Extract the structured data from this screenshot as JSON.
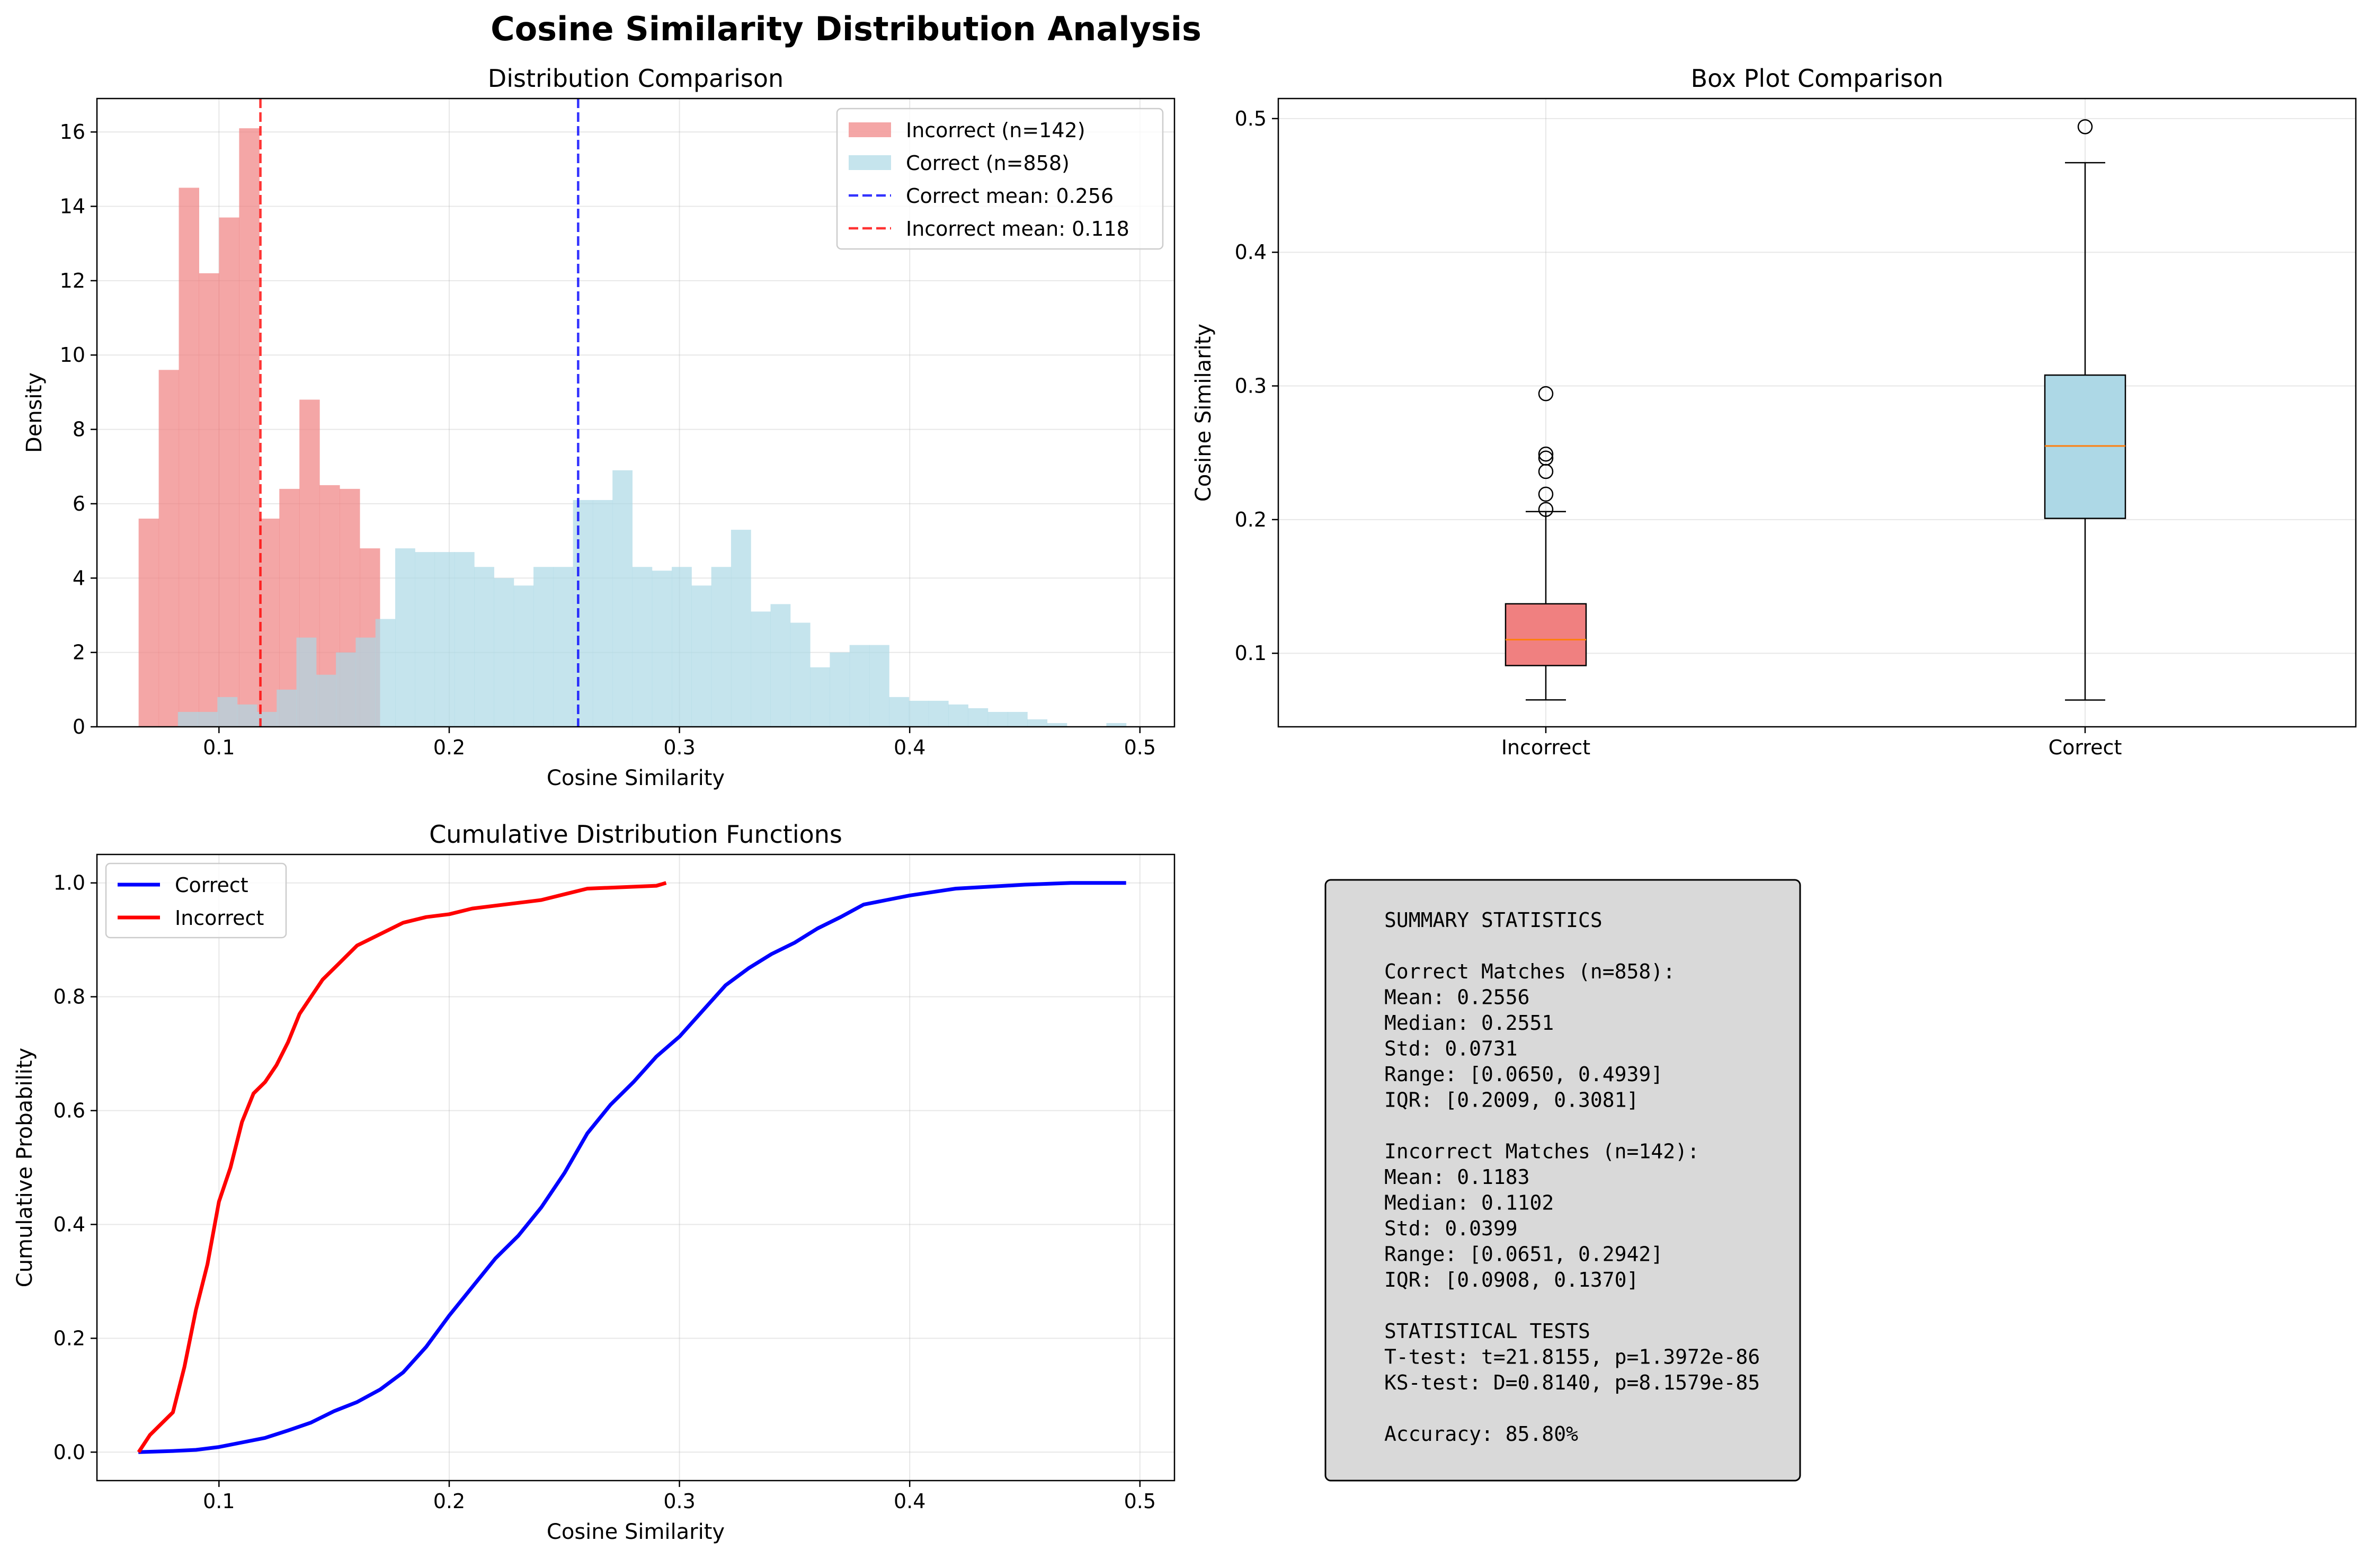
{
  "suptitle": "Cosine Similarity Distribution Analysis",
  "colors": {
    "incorrect_fill": "#f08080",
    "correct_fill": "#add8e6",
    "correct_line": "#0000ff",
    "incorrect_line": "#ff0000",
    "median": "#ff7f0e",
    "grid": "#b0b0b0",
    "stats_bg": "#d9d9d9"
  },
  "chart_data": [
    {
      "type": "bar",
      "title": "Distribution Comparison",
      "xlabel": "Cosine Similarity",
      "ylabel": "Density",
      "xlim": [
        0.047,
        0.515
      ],
      "ylim": [
        0,
        16.9
      ],
      "xticks": [
        0.1,
        0.2,
        0.3,
        0.4,
        0.5
      ],
      "xtick_labels": [
        "0.1",
        "0.2",
        "0.3",
        "0.4",
        "0.5"
      ],
      "yticks": [
        0,
        2,
        4,
        6,
        8,
        10,
        12,
        14,
        16
      ],
      "ytick_labels": [
        "0",
        "2",
        "4",
        "6",
        "8",
        "10",
        "12",
        "14",
        "16"
      ],
      "grid": true,
      "legend_position": "upper right",
      "series": [
        {
          "name": "Incorrect (n=142)",
          "color": "#f08080",
          "bin_start": 0.0651,
          "bin_width": 0.00873,
          "densities": [
            5.6,
            9.6,
            14.5,
            12.2,
            13.7,
            16.1,
            5.6,
            6.4,
            8.8,
            6.5,
            6.4,
            4.8
          ]
        },
        {
          "name": "Correct (n=858)",
          "color": "#add8e6",
          "bin_start": 0.065,
          "bin_width": 0.00858,
          "densities": [
            0,
            0,
            0.4,
            0.4,
            0.8,
            0.6,
            0.4,
            1.0,
            2.4,
            1.4,
            2.0,
            2.4,
            2.9,
            4.8,
            4.7,
            4.7,
            4.7,
            4.3,
            4.0,
            3.8,
            4.3,
            4.3,
            6.1,
            6.1,
            6.9,
            4.3,
            4.2,
            4.3,
            3.8,
            4.3,
            5.3,
            3.1,
            3.3,
            2.8,
            1.6,
            2.0,
            2.2,
            2.2,
            0.8,
            0.7,
            0.7,
            0.6,
            0.5,
            0.4,
            0.4,
            0.2,
            0.1,
            0,
            0,
            0.1
          ]
        }
      ],
      "mean_lines": [
        {
          "name": "Correct mean: 0.256",
          "x": 0.256,
          "color": "#0000ff"
        },
        {
          "name": "Incorrect mean: 0.118",
          "x": 0.118,
          "color": "#ff0000"
        }
      ]
    },
    {
      "type": "box",
      "title": "Box Plot Comparison",
      "xlabel": "",
      "ylabel": "Cosine Similarity",
      "ylim": [
        0.045,
        0.515
      ],
      "yticks": [
        0.1,
        0.2,
        0.3,
        0.4,
        0.5
      ],
      "ytick_labels": [
        "0.1",
        "0.2",
        "0.3",
        "0.4",
        "0.5"
      ],
      "grid": true,
      "categories": [
        "Incorrect",
        "Correct"
      ],
      "boxes": [
        {
          "name": "Incorrect",
          "color": "#f08080",
          "whisker_low": 0.0651,
          "q1": 0.0908,
          "median": 0.1102,
          "q3": 0.137,
          "whisker_high": 0.206,
          "outliers": [
            0.2076,
            0.219,
            0.236,
            0.246,
            0.249,
            0.2942
          ]
        },
        {
          "name": "Correct",
          "color": "#add8e6",
          "whisker_low": 0.065,
          "q1": 0.2009,
          "median": 0.2551,
          "q3": 0.3081,
          "whisker_high": 0.467,
          "outliers": [
            0.4939
          ]
        }
      ]
    },
    {
      "type": "line",
      "title": "Cumulative Distribution Functions",
      "xlabel": "Cosine Similarity",
      "ylabel": "Cumulative Probability",
      "xlim": [
        0.047,
        0.515
      ],
      "ylim": [
        -0.05,
        1.05
      ],
      "xticks": [
        0.1,
        0.2,
        0.3,
        0.4,
        0.5
      ],
      "xtick_labels": [
        "0.1",
        "0.2",
        "0.3",
        "0.4",
        "0.5"
      ],
      "yticks": [
        0.0,
        0.2,
        0.4,
        0.6,
        0.8,
        1.0
      ],
      "ytick_labels": [
        "0.0",
        "0.2",
        "0.4",
        "0.6",
        "0.8",
        "1.0"
      ],
      "grid": true,
      "legend_position": "upper left",
      "series": [
        {
          "name": "Correct",
          "color": "#0000ff",
          "x": [
            0.065,
            0.08,
            0.09,
            0.1,
            0.11,
            0.12,
            0.13,
            0.14,
            0.15,
            0.16,
            0.17,
            0.18,
            0.19,
            0.2,
            0.21,
            0.22,
            0.23,
            0.24,
            0.25,
            0.26,
            0.27,
            0.28,
            0.29,
            0.3,
            0.31,
            0.32,
            0.33,
            0.34,
            0.35,
            0.36,
            0.37,
            0.38,
            0.39,
            0.4,
            0.42,
            0.45,
            0.47,
            0.494
          ],
          "values": [
            0.0,
            0.002,
            0.004,
            0.009,
            0.017,
            0.025,
            0.038,
            0.052,
            0.072,
            0.088,
            0.11,
            0.14,
            0.185,
            0.24,
            0.29,
            0.34,
            0.38,
            0.43,
            0.49,
            0.56,
            0.61,
            0.65,
            0.695,
            0.73,
            0.775,
            0.82,
            0.85,
            0.875,
            0.895,
            0.92,
            0.94,
            0.962,
            0.97,
            0.978,
            0.99,
            0.997,
            1.0,
            1.0
          ]
        },
        {
          "name": "Incorrect",
          "color": "#ff0000",
          "x": [
            0.0651,
            0.07,
            0.075,
            0.08,
            0.085,
            0.09,
            0.095,
            0.1,
            0.105,
            0.11,
            0.115,
            0.12,
            0.125,
            0.13,
            0.135,
            0.14,
            0.145,
            0.15,
            0.155,
            0.16,
            0.17,
            0.18,
            0.19,
            0.2,
            0.21,
            0.22,
            0.24,
            0.25,
            0.26,
            0.29,
            0.2942
          ],
          "values": [
            0.0,
            0.03,
            0.05,
            0.07,
            0.15,
            0.25,
            0.33,
            0.44,
            0.5,
            0.58,
            0.63,
            0.65,
            0.68,
            0.72,
            0.77,
            0.8,
            0.83,
            0.85,
            0.87,
            0.89,
            0.91,
            0.93,
            0.94,
            0.945,
            0.955,
            0.96,
            0.97,
            0.98,
            0.99,
            0.995,
            1.0
          ]
        }
      ]
    }
  ],
  "summary": {
    "lines": [
      "SUMMARY STATISTICS",
      "",
      "Correct Matches (n=858):",
      "Mean: 0.2556",
      "Median: 0.2551",
      "Std: 0.0731",
      "Range: [0.0650, 0.4939]",
      "IQR: [0.2009, 0.3081]",
      "",
      "Incorrect Matches (n=142):",
      "Mean: 0.1183",
      "Median: 0.1102",
      "Std: 0.0399",
      "Range: [0.0651, 0.2942]",
      "IQR: [0.0908, 0.1370]",
      "",
      "STATISTICAL TESTS",
      "T-test: t=21.8155, p=1.3972e-86",
      "KS-test: D=0.8140, p=8.1579e-85",
      "",
      "Accuracy: 85.80%"
    ]
  }
}
